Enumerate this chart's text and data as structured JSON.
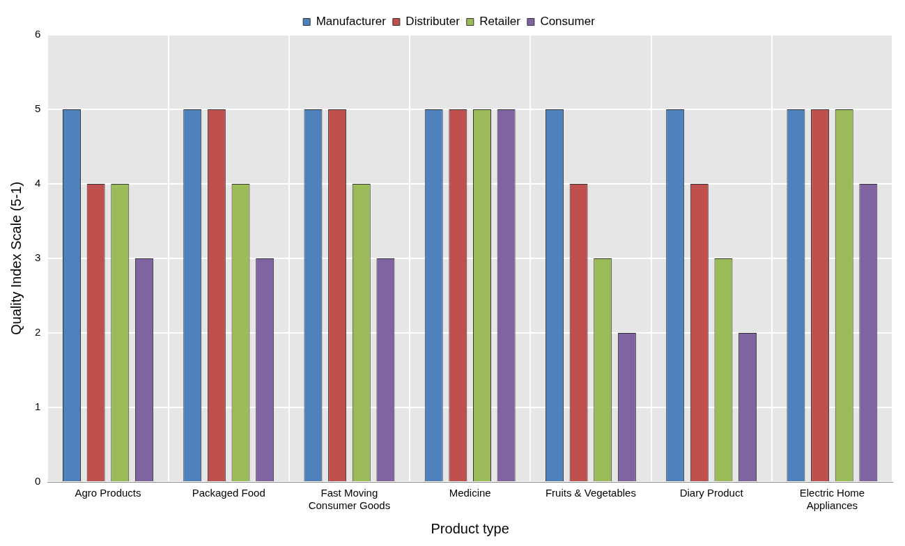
{
  "chart_data": {
    "type": "bar",
    "xlabel": "Product type",
    "ylabel": "Quality Index Scale (5-1)",
    "categories": [
      "Agro Products",
      "Packaged Food",
      "Fast Moving Consumer Goods",
      "Medicine",
      "Fruits & Vegetables",
      "Diary Product",
      "Electric Home Appliances"
    ],
    "series": [
      {
        "name": "Manufacturer",
        "color": "#4f81bd",
        "values": [
          5,
          5,
          5,
          5,
          5,
          5,
          5
        ]
      },
      {
        "name": "Distributer",
        "color": "#c0504d",
        "values": [
          4,
          5,
          5,
          5,
          4,
          4,
          5
        ]
      },
      {
        "name": "Retailer",
        "color": "#9bbb59",
        "values": [
          4,
          4,
          4,
          5,
          3,
          3,
          5
        ]
      },
      {
        "name": "Consumer",
        "color": "#8064a2",
        "values": [
          3,
          3,
          3,
          5,
          2,
          2,
          4
        ]
      }
    ],
    "ylim": [
      0,
      6
    ],
    "yticks": [
      0,
      1,
      2,
      3,
      4,
      5,
      6
    ],
    "grid": true,
    "legend": "top"
  }
}
